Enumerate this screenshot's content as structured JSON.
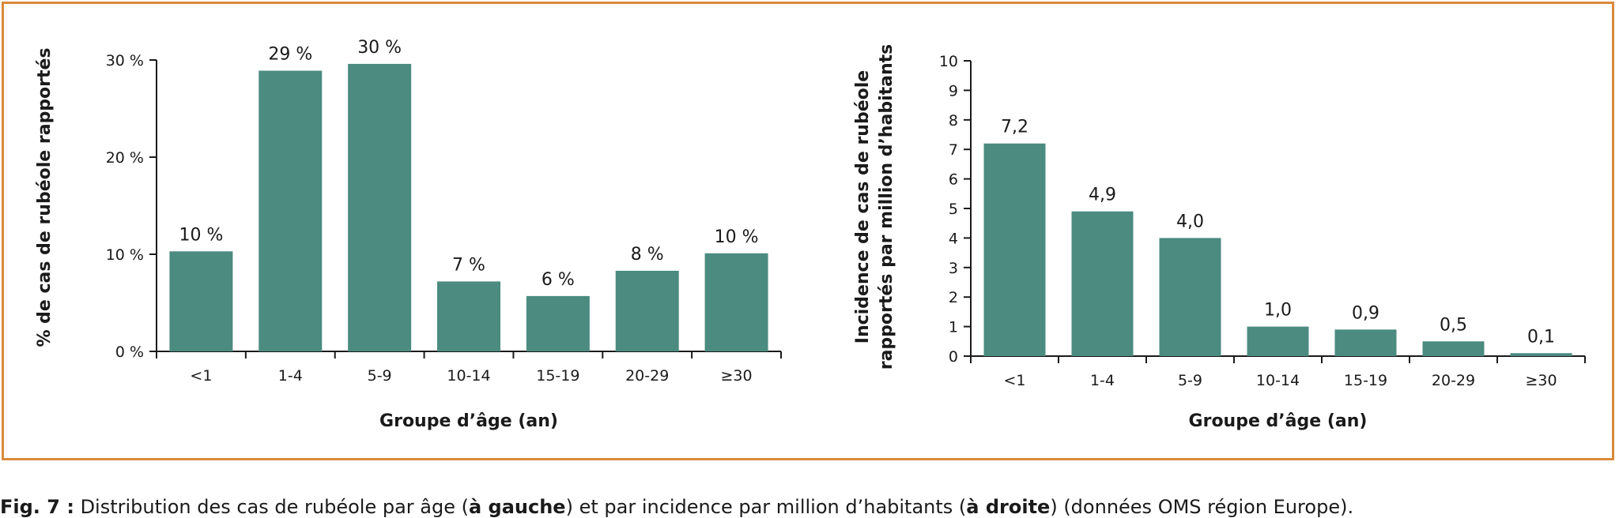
{
  "chart_data": [
    {
      "type": "bar",
      "categories": [
        "<1",
        "1-4",
        "5-9",
        "10-14",
        "15-19",
        "20-29",
        "≥30"
      ],
      "values": [
        10.3,
        28.9,
        29.6,
        7.2,
        5.7,
        8.3,
        10.1
      ],
      "data_labels": [
        "10 %",
        "29 %",
        "30 %",
        "7 %",
        "6 %",
        "8 %",
        "10 %"
      ],
      "xlabel": "Groupe d’âge (an)",
      "ylabel": "% de cas de rubéole rapportés",
      "ylim": [
        0,
        30
      ],
      "yticks": [
        0,
        10,
        20,
        30
      ],
      "ytick_labels": [
        "0 %",
        "10 %",
        "20 %",
        "30 %"
      ],
      "bar_color": "#4b8b80",
      "grid": false
    },
    {
      "type": "bar",
      "categories": [
        "<1",
        "1-4",
        "5-9",
        "10-14",
        "15-19",
        "20-29",
        "≥30"
      ],
      "values": [
        7.2,
        4.9,
        4.0,
        1.0,
        0.9,
        0.5,
        0.1
      ],
      "data_labels": [
        "7,2",
        "4,9",
        "4,0",
        "1,0",
        "0,9",
        "0,5",
        "0,1"
      ],
      "xlabel": "Groupe d’âge (an)",
      "ylabel_lines": [
        "Incidence de cas de rubéole",
        "rapportés par million d’habitants"
      ],
      "ylim": [
        0,
        10
      ],
      "yticks": [
        0,
        1,
        2,
        3,
        4,
        5,
        6,
        7,
        8,
        9,
        10
      ],
      "ytick_labels": [
        "0",
        "1",
        "2",
        "3",
        "4",
        "5",
        "6",
        "7",
        "8",
        "9",
        "10"
      ],
      "bar_color": "#4b8b80",
      "grid": false
    }
  ],
  "caption": {
    "prefix": "Fig. 7 :",
    "t1": " Distribution des cas de rubéole par âge (",
    "b1": "à gauche",
    "t2": ") et par incidence par million d’habitants (",
    "b2": "à droite",
    "t3": ") (données OMS région Europe)."
  },
  "colors": {
    "frame": "#d98a3c",
    "bars": "#4b8b80",
    "axis": "#1a1a1a"
  }
}
